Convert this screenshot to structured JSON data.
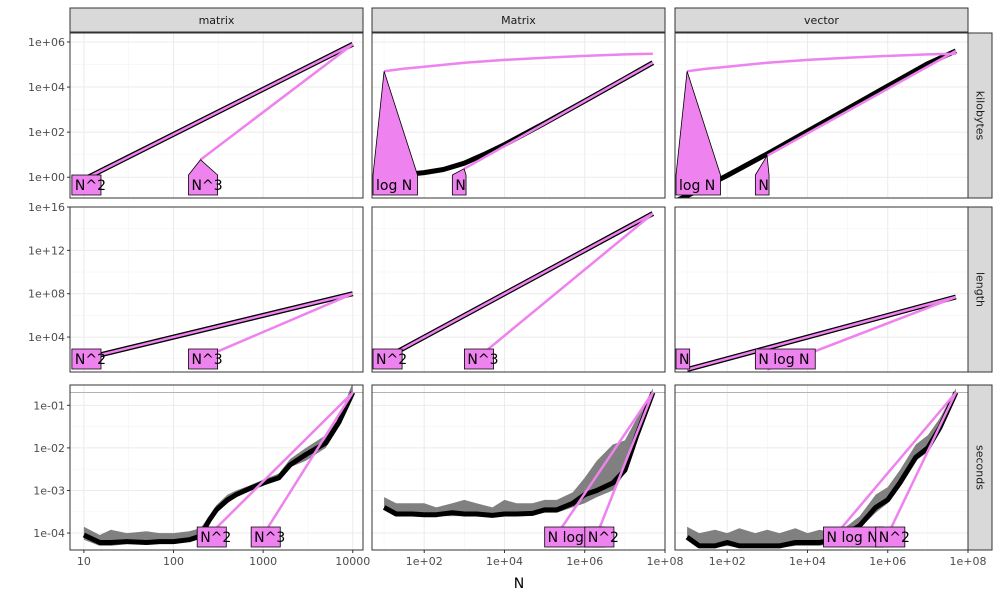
{
  "chart_data": {
    "type": "line",
    "title": "",
    "xlabel": "N",
    "ylabel": "",
    "col_facets": [
      "matrix",
      "Matrix",
      "vector"
    ],
    "row_facets": [
      "kilobytes",
      "length",
      "seconds"
    ],
    "x_ticks": {
      "matrix": [
        "10",
        "100",
        "1000",
        "10000"
      ],
      "Matrix": [
        "1e+02",
        "1e+04",
        "1e+06",
        "1e+08"
      ],
      "vector": [
        "1e+02",
        "1e+04",
        "1e+06",
        "1e+08"
      ]
    },
    "y_ticks": {
      "kilobytes": [
        "1e+00",
        "1e+02",
        "1e+04",
        "1e+06"
      ],
      "length": [
        "1e+04",
        "1e+08",
        "1e+12",
        "1e+16"
      ],
      "seconds": [
        "1e-04",
        "1e-03",
        "1e-02",
        "1e-01"
      ]
    },
    "x_scale": "log10",
    "y_scale": "log10",
    "grid": true,
    "reference_line": {
      "row": "seconds",
      "y": 0.2
    },
    "xlim": {
      "matrix": [
        7,
        13000
      ],
      "Matrix": [
        5,
        100000000
      ],
      "vector": [
        5,
        100000000
      ]
    },
    "ylim": {
      "kilobytes": [
        0.12,
        2500000
      ],
      "length": [
        6,
        1e+16
      ],
      "seconds": [
        4e-05,
        0.3
      ]
    },
    "panels": [
      {
        "col": "matrix",
        "row": "kilobytes",
        "measured": {
          "x": [
            10,
            10000
          ],
          "y": [
            0.8,
            800000
          ]
        },
        "fits": [
          {
            "label": "N^2",
            "x": [
              10,
              10000
            ],
            "y": [
              0.8,
              800000
            ]
          },
          {
            "label": "N^3",
            "x": [
              200,
              10000
            ],
            "y": [
              6,
              800000
            ]
          }
        ]
      },
      {
        "col": "Matrix",
        "row": "kilobytes",
        "measured": {
          "x": [
            10,
            30,
            100,
            300,
            1000,
            3000,
            10000,
            100000,
            1000000,
            10000000,
            50000000
          ],
          "y": [
            1.1,
            1.3,
            1.6,
            2.2,
            4.2,
            10,
            28,
            250,
            2400,
            24000,
            120000
          ]
        },
        "fits": [
          {
            "label": "log N",
            "x": [
              10,
              30,
              100,
              1000,
              10000,
              100000,
              1000000,
              10000000,
              50000000
            ],
            "y": [
              50000,
              65000,
              80000,
              120000,
              160000,
              200000,
              240000,
              280000,
              300000
            ]
          },
          {
            "label": "N",
            "x": [
              1000,
              50000000
            ],
            "y": [
              2.4,
              120000
            ]
          }
        ]
      },
      {
        "col": "vector",
        "row": "kilobytes",
        "measured": {
          "x": [
            6,
            10,
            100,
            1000,
            10000,
            100000,
            1000000,
            10000000,
            50000000
          ],
          "y": [
            0.1,
            0.15,
            1.2,
            11,
            110,
            1100,
            11000,
            110000,
            400000
          ]
        },
        "fits": [
          {
            "label": "log N",
            "x": [
              10,
              30,
              100,
              1000,
              10000,
              100000,
              1000000,
              10000000,
              50000000
            ],
            "y": [
              50000,
              65000,
              80000,
              120000,
              160000,
              200000,
              240000,
              280000,
              300000
            ]
          },
          {
            "label": "N",
            "x": [
              1000,
              50000000
            ],
            "y": [
              9,
              400000
            ]
          }
        ]
      },
      {
        "col": "matrix",
        "row": "length",
        "measured": {
          "x": [
            10,
            10000
          ],
          "y": [
            100,
            100000000
          ]
        },
        "fits": [
          {
            "label": "N^2",
            "x": [
              10,
              10000
            ],
            "y": [
              100,
              100000000
            ]
          },
          {
            "label": "N^3",
            "x": [
              200,
              10000
            ],
            "y": [
              100,
              100000000
            ]
          }
        ]
      },
      {
        "col": "Matrix",
        "row": "length",
        "measured": {
          "x": [
            10,
            50000000
          ],
          "y": [
            100,
            2500000000000000.0
          ]
        },
        "fits": [
          {
            "label": "N^2",
            "x": [
              10,
              50000000
            ],
            "y": [
              100,
              2500000000000000.0
            ]
          },
          {
            "label": "N^3",
            "x": [
              2000,
              50000000
            ],
            "y": [
              100,
              2500000000000000.0
            ]
          }
        ]
      },
      {
        "col": "vector",
        "row": "length",
        "measured": {
          "x": [
            10,
            50000000
          ],
          "y": [
            10,
            50000000
          ]
        },
        "fits": [
          {
            "label": "N",
            "x": [
              10,
              50000000
            ],
            "y": [
              10,
              50000000
            ]
          },
          {
            "label": "N log N",
            "x": [
              1000,
              50000000
            ],
            "y": [
              10,
              50000000
            ]
          }
        ]
      },
      {
        "col": "matrix",
        "row": "seconds",
        "measured": {
          "x": [
            10,
            15,
            20,
            30,
            50,
            70,
            100,
            150,
            200,
            250,
            300,
            400,
            500,
            700,
            1000,
            1500,
            2000,
            3000,
            5000,
            7000,
            10000
          ],
          "y": [
            9e-05,
            6e-05,
            6e-05,
            6.3e-05,
            6e-05,
            6.3e-05,
            6.3e-05,
            7e-05,
            8.5e-05,
            0.0002,
            0.00035,
            0.0006,
            0.0008,
            0.0011,
            0.0015,
            0.002,
            0.004,
            0.007,
            0.013,
            0.04,
            0.2
          ]
        },
        "band": {
          "x": [
            10,
            15,
            20,
            30,
            50,
            70,
            100,
            150,
            200,
            250,
            300,
            400,
            500,
            700,
            1000,
            1500,
            2000,
            3000,
            5000,
            7000,
            10000
          ],
          "lo": [
            7e-05,
            5e-05,
            5e-05,
            5.5e-05,
            5.5e-05,
            5.7e-05,
            5.8e-05,
            6.5e-05,
            8e-05,
            0.00017,
            0.0003,
            0.0005,
            0.0007,
            0.001,
            0.0013,
            0.0018,
            0.0035,
            0.005,
            0.01,
            0.035,
            0.17
          ],
          "hi": [
            0.00014,
            9e-05,
            0.00012,
            0.0001,
            0.00011,
            0.0001,
            0.0001,
            0.00011,
            0.00013,
            0.00025,
            0.00045,
            0.0008,
            0.001,
            0.0013,
            0.0018,
            0.0025,
            0.0055,
            0.01,
            0.02,
            0.05,
            0.35
          ]
        },
        "fits": [
          {
            "label": "N^2",
            "x": [
              250,
              10000
            ],
            "y": [
              9e-05,
              0.2
            ]
          },
          {
            "label": "N^3",
            "x": [
              1000,
              10000
            ],
            "y": [
              9e-05,
              0.2
            ]
          }
        ]
      },
      {
        "col": "Matrix",
        "row": "seconds",
        "measured": {
          "x": [
            10,
            20,
            50,
            100,
            200,
            500,
            1000,
            2000,
            5000,
            10000,
            20000,
            50000,
            100000,
            200000,
            500000,
            1000000,
            2000000,
            5000000,
            10000000,
            20000000,
            50000000
          ],
          "y": [
            0.0004,
            0.00028,
            0.00028,
            0.00027,
            0.00027,
            0.0003,
            0.00028,
            0.00028,
            0.00026,
            0.00028,
            0.00028,
            0.00029,
            0.00035,
            0.00035,
            0.0005,
            0.0008,
            0.001,
            0.0015,
            0.003,
            0.02,
            0.2
          ]
        },
        "band": {
          "x": [
            10,
            20,
            50,
            100,
            200,
            500,
            1000,
            2000,
            5000,
            10000,
            20000,
            50000,
            100000,
            200000,
            500000,
            1000000,
            2000000,
            5000000,
            10000000,
            20000000,
            50000000
          ],
          "lo": [
            0.00035,
            0.00025,
            0.00025,
            0.00025,
            0.00025,
            0.00025,
            0.00025,
            0.00025,
            0.00024,
            0.00025,
            0.00025,
            0.00026,
            0.0003,
            0.0003,
            0.0004,
            0.0005,
            0.0007,
            0.001,
            0.0025,
            0.015,
            0.17
          ],
          "hi": [
            0.0007,
            0.0005,
            0.0005,
            0.0005,
            0.0004,
            0.0005,
            0.0006,
            0.0005,
            0.0004,
            0.0006,
            0.0005,
            0.0005,
            0.0006,
            0.0006,
            0.0009,
            0.002,
            0.005,
            0.012,
            0.015,
            0.05,
            0.25
          ]
        },
        "fits": [
          {
            "label": "N log N",
            "x": [
              200000,
              50000000
            ],
            "y": [
              9e-05,
              0.2
            ]
          },
          {
            "label": "N^2",
            "x": [
              2000000,
              50000000
            ],
            "y": [
              9e-05,
              0.2
            ]
          }
        ]
      },
      {
        "col": "vector",
        "row": "seconds",
        "measured": {
          "x": [
            10,
            20,
            50,
            100,
            200,
            500,
            1000,
            2000,
            5000,
            10000,
            20000,
            50000,
            100000,
            200000,
            500000,
            1000000,
            2000000,
            5000000,
            10000000,
            20000000,
            50000000
          ],
          "y": [
            8e-05,
            5e-05,
            5e-05,
            6e-05,
            5e-05,
            5e-05,
            5e-05,
            5e-05,
            6e-05,
            6e-05,
            6e-05,
            7e-05,
            0.0001,
            0.00015,
            0.0004,
            0.0006,
            0.0015,
            0.006,
            0.01,
            0.03,
            0.2
          ]
        },
        "band": {
          "x": [
            10,
            20,
            50,
            100,
            200,
            500,
            1000,
            2000,
            5000,
            10000,
            20000,
            50000,
            100000,
            200000,
            500000,
            1000000,
            2000000,
            5000000,
            10000000,
            20000000,
            50000000
          ],
          "lo": [
            7e-05,
            4.5e-05,
            4.5e-05,
            5e-05,
            4.5e-05,
            4.5e-05,
            4.5e-05,
            4.5e-05,
            5e-05,
            5e-05,
            5e-05,
            6e-05,
            9e-05,
            0.00013,
            0.0003,
            0.0005,
            0.0012,
            0.005,
            0.008,
            0.025,
            0.17
          ],
          "hi": [
            0.00014,
            0.0001,
            0.00012,
            0.0001,
            0.00013,
            0.0001,
            0.00012,
            0.0001,
            0.00013,
            0.0001,
            0.00012,
            0.0001,
            0.00015,
            0.00025,
            0.0008,
            0.0012,
            0.003,
            0.012,
            0.02,
            0.05,
            0.25
          ]
        },
        "fits": [
          {
            "label": "N log N",
            "x": [
              50000,
              50000000
            ],
            "y": [
              9e-05,
              0.2
            ]
          },
          {
            "label": "N^2",
            "x": [
              1000000,
              50000000
            ],
            "y": [
              9e-05,
              0.2
            ]
          }
        ]
      }
    ]
  },
  "colors": {
    "strip_bg": "#d9d9d9",
    "panel_border": "#333333",
    "grid_major": "#ebebeb",
    "grid_minor": "#f5f5f5",
    "measured_line": "#000000",
    "band_fill": "#808080",
    "fit_line": "#ee82ee",
    "label_fill": "#ee82ee",
    "reference_line": "#b3b3b3"
  }
}
